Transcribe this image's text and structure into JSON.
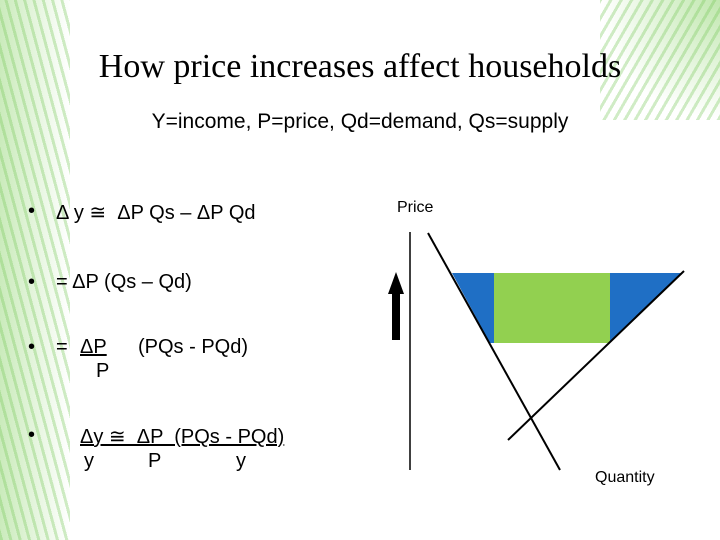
{
  "title": "How price increases affect households",
  "subtitle": "Y=income, P=price, Qd=demand, Qs=supply",
  "bullets": [
    {
      "marker": "•",
      "text": "Δ y ≅  ΔP Qs – ΔP Qd"
    },
    {
      "marker": "•",
      "text": "= ΔP (Qs – Qd)"
    },
    {
      "marker": "•",
      "prefix": "=",
      "numerator": "ΔP",
      "rest": "(PQs - PQd)",
      "denominator": "P"
    },
    {
      "marker": "•",
      "numerator": "Δy ≅  ΔP  (PQs - PQd)",
      "denominators": [
        "y",
        "P",
        "y"
      ]
    }
  ],
  "diagram": {
    "y_label": "Price",
    "x_label": "Quantity"
  }
}
